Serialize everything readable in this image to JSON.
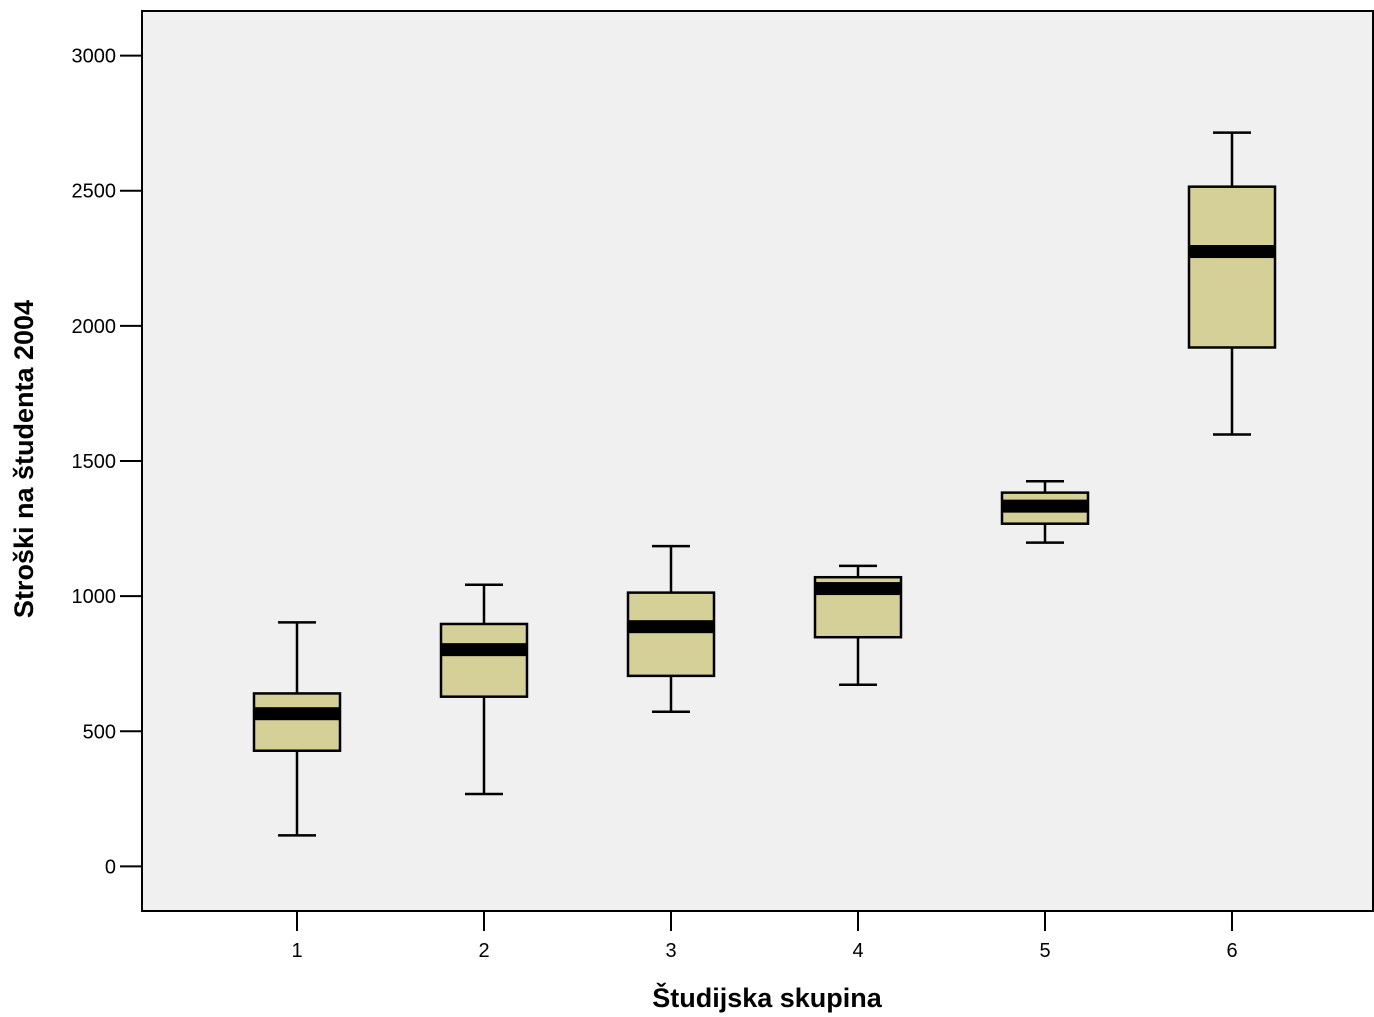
{
  "chart_data": {
    "type": "boxplot",
    "title": "",
    "xlabel": "Študijska skupina",
    "ylabel": "Stroški na študenta 2004",
    "categories": [
      "1",
      "2",
      "3",
      "4",
      "5",
      "6"
    ],
    "ylim": [
      -165,
      3165
    ],
    "yticks": [
      0,
      500,
      1000,
      1500,
      2000,
      2500,
      3000
    ],
    "grid": false,
    "legend": "none",
    "colors": {
      "plot_background": "#f0f0f0",
      "box_fill": "#d5cf98",
      "stroke": "#000000"
    },
    "boxes": [
      {
        "category": "1",
        "whisker_low": 115,
        "q1": 428,
        "median": 565,
        "q3": 640,
        "whisker_high": 903
      },
      {
        "category": "2",
        "whisker_low": 268,
        "q1": 628,
        "median": 802,
        "q3": 897,
        "whisker_high": 1042
      },
      {
        "category": "3",
        "whisker_low": 572,
        "q1": 705,
        "median": 887,
        "q3": 1013,
        "whisker_high": 1185
      },
      {
        "category": "4",
        "whisker_low": 672,
        "q1": 848,
        "median": 1028,
        "q3": 1070,
        "whisker_high": 1112
      },
      {
        "category": "5",
        "whisker_low": 1198,
        "q1": 1268,
        "median": 1333,
        "q3": 1383,
        "whisker_high": 1425
      },
      {
        "category": "6",
        "whisker_low": 1598,
        "q1": 1920,
        "median": 2275,
        "q3": 2515,
        "whisker_high": 2715
      }
    ]
  }
}
